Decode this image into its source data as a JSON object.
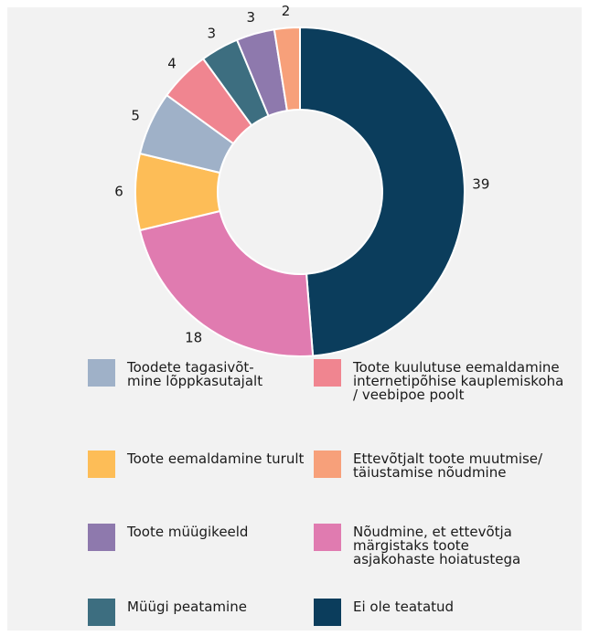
{
  "chart_data": {
    "type": "donut",
    "categories": [
      "Ei ole teatatud",
      "Nõudmine, et ettevõtja\nmärgistaks toote\nasjakohaste hoiatustega",
      "Toote eemaldamine turult",
      "Toodete tagasivõt-\nmine lõppkasutajalt",
      "Toote kuulutuse eemaldamine\ninternetipõhise kauplemiskoha\n/ veebipoe poolt",
      "Müügi peatamine",
      "Toote müügikeeld",
      "Ettevõtjalt toote muutmise/\ntäiustamise nõudmine"
    ],
    "values": [
      39,
      18,
      6,
      5,
      4,
      3,
      3,
      2
    ],
    "colors": [
      "#0b3d5c",
      "#e07bb0",
      "#fdbd57",
      "#9fb1c8",
      "#f08590",
      "#3d6e80",
      "#8e79ad",
      "#f7a07a"
    ]
  }
}
